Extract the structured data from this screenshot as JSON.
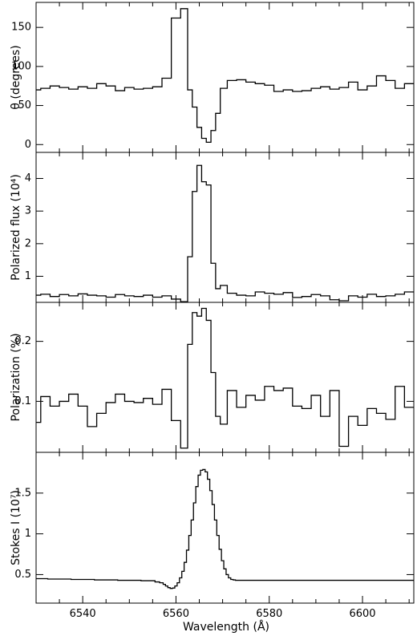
{
  "chart_data": {
    "type": "line",
    "line_style": "step",
    "xlabel": "Wavelength (Å)",
    "xlim": [
      6530,
      6611
    ],
    "xticks": [
      6540,
      6560,
      6580,
      6600
    ],
    "panels": [
      {
        "name": "theta",
        "ylabel": "θ (degrees)",
        "ylim": [
          -10,
          182
        ],
        "yticks": [
          0,
          50,
          100,
          150
        ],
        "series": [
          {
            "x": [
              6530,
              6532,
              6534,
              6536,
              6538,
              6540,
              6542,
              6544,
              6546,
              6548,
              6550,
              6552,
              6554,
              6556,
              6558,
              6560,
              6562,
              6563,
              6564,
              6565,
              6566,
              6567,
              6568,
              6569,
              6570,
              6572,
              6574,
              6576,
              6578,
              6580,
              6582,
              6584,
              6586,
              6588,
              6590,
              6592,
              6594,
              6596,
              6598,
              6600,
              6602,
              6604,
              6606,
              6608,
              6610
            ],
            "y": [
              70,
              72,
              75,
              73,
              71,
              74,
              72,
              78,
              75,
              69,
              73,
              71,
              72,
              74,
              85,
              162,
              174,
              70,
              48,
              22,
              8,
              3,
              18,
              40,
              72,
              82,
              83,
              80,
              78,
              76,
              68,
              70,
              68,
              69,
              72,
              74,
              71,
              73,
              80,
              70,
              75,
              88,
              82,
              72,
              78
            ]
          }
        ]
      },
      {
        "name": "polarized-flux",
        "ylabel": "Polarized flux (10⁴)",
        "ylim": [
          0.2,
          4.8
        ],
        "yticks": [
          1,
          2,
          3,
          4
        ],
        "series": [
          {
            "x": [
              6530,
              6532,
              6534,
              6536,
              6538,
              6540,
              6542,
              6544,
              6546,
              6548,
              6550,
              6552,
              6554,
              6556,
              6558,
              6560,
              6562,
              6563,
              6564,
              6565,
              6566,
              6567,
              6568,
              6569,
              6570,
              6572,
              6574,
              6576,
              6578,
              6580,
              6582,
              6584,
              6586,
              6588,
              6590,
              6592,
              6594,
              6596,
              6598,
              6600,
              6602,
              6604,
              6606,
              6608,
              6610
            ],
            "y": [
              0.42,
              0.45,
              0.38,
              0.44,
              0.4,
              0.46,
              0.42,
              0.4,
              0.36,
              0.44,
              0.4,
              0.38,
              0.42,
              0.36,
              0.4,
              0.3,
              0.22,
              1.6,
              3.6,
              4.4,
              3.9,
              3.8,
              1.4,
              0.62,
              0.72,
              0.48,
              0.42,
              0.4,
              0.52,
              0.48,
              0.45,
              0.5,
              0.35,
              0.38,
              0.44,
              0.4,
              0.28,
              0.25,
              0.4,
              0.36,
              0.45,
              0.38,
              0.4,
              0.45,
              0.52
            ]
          }
        ]
      },
      {
        "name": "polarization",
        "ylabel": "Polarization (%)",
        "ylim": [
          0.015,
          0.265
        ],
        "yticks": [
          0.1,
          0.2
        ],
        "series": [
          {
            "x": [
              6530,
              6532,
              6534,
              6536,
              6538,
              6540,
              6542,
              6544,
              6546,
              6548,
              6550,
              6552,
              6554,
              6556,
              6558,
              6560,
              6562,
              6563,
              6564,
              6565,
              6566,
              6567,
              6568,
              6569,
              6570,
              6572,
              6574,
              6576,
              6578,
              6580,
              6582,
              6584,
              6586,
              6588,
              6590,
              6592,
              6594,
              6596,
              6598,
              6600,
              6602,
              6604,
              6606,
              6608,
              6610
            ],
            "y": [
              0.065,
              0.108,
              0.092,
              0.1,
              0.112,
              0.092,
              0.058,
              0.08,
              0.098,
              0.112,
              0.1,
              0.098,
              0.105,
              0.095,
              0.12,
              0.068,
              0.022,
              0.195,
              0.248,
              0.242,
              0.255,
              0.235,
              0.148,
              0.075,
              0.062,
              0.118,
              0.09,
              0.11,
              0.102,
              0.125,
              0.118,
              0.122,
              0.092,
              0.088,
              0.11,
              0.075,
              0.118,
              0.025,
              0.075,
              0.06,
              0.088,
              0.08,
              0.07,
              0.125,
              0.09
            ]
          }
        ]
      },
      {
        "name": "stokes-i",
        "ylabel": "Stokes I (10⁷)",
        "ylim": [
          0.15,
          2.0
        ],
        "yticks": [
          0.5,
          1,
          1.5
        ],
        "series": [
          {
            "x": [
              6530,
              6535,
              6540,
              6545,
              6550,
              6555,
              6556,
              6557,
              6557.5,
              6558,
              6558.5,
              6559,
              6559.5,
              6560,
              6560.5,
              6561,
              6561.5,
              6562,
              6562.5,
              6563,
              6563.5,
              6564,
              6564.5,
              6565,
              6565.5,
              6566,
              6566.5,
              6567,
              6567.5,
              6568,
              6568.5,
              6569,
              6569.5,
              6570,
              6570.5,
              6571,
              6571.5,
              6572,
              6572.5,
              6573,
              6573.5,
              6574,
              6574.5,
              6575,
              6576,
              6578,
              6580,
              6585,
              6590,
              6595,
              6600,
              6605,
              6610
            ],
            "y": [
              0.45,
              0.445,
              0.44,
              0.435,
              0.43,
              0.425,
              0.41,
              0.4,
              0.38,
              0.36,
              0.34,
              0.33,
              0.335,
              0.36,
              0.4,
              0.46,
              0.54,
              0.65,
              0.8,
              0.98,
              1.17,
              1.38,
              1.58,
              1.72,
              1.78,
              1.79,
              1.76,
              1.67,
              1.53,
              1.36,
              1.17,
              0.98,
              0.81,
              0.67,
              0.57,
              0.5,
              0.46,
              0.44,
              0.435,
              0.43,
              0.43,
              0.43,
              0.43,
              0.43,
              0.43,
              0.43,
              0.43,
              0.43,
              0.43,
              0.43,
              0.43,
              0.43,
              0.43
            ]
          }
        ]
      }
    ]
  }
}
